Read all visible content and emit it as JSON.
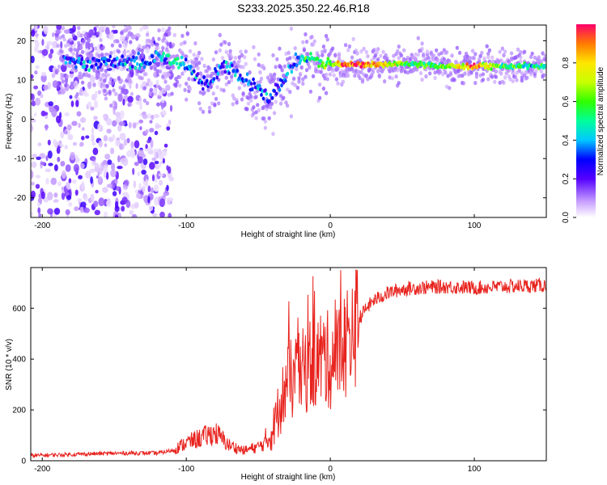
{
  "title": "S233.2025.350.22.46.R18",
  "chart_data": [
    {
      "type": "heatmap",
      "xlabel": "Height of straight line (km)",
      "ylabel": "Frequency (Hz)",
      "xlim": [
        -208,
        150
      ],
      "ylim": [
        -25,
        24
      ],
      "xticks": [
        -200,
        -100,
        0,
        100
      ],
      "yticks": [
        -20,
        -10,
        0,
        10,
        20
      ],
      "ridge": {
        "x": [
          -180,
          -170,
          -160,
          -150,
          -140,
          -130,
          -120,
          -110,
          -100,
          -95,
          -90,
          -85,
          -80,
          -75,
          -70,
          -65,
          -60,
          -55,
          -50,
          -45,
          -42,
          -40,
          -35,
          -30,
          -25,
          -20,
          -15,
          -10,
          -5,
          0,
          10,
          20,
          40,
          60,
          80,
          100,
          120,
          150
        ],
        "frequency": [
          15,
          14,
          15,
          14,
          15,
          14,
          16,
          15,
          14,
          12,
          10,
          9,
          11,
          14,
          13,
          11,
          10,
          9,
          8,
          6,
          4,
          7,
          9,
          12,
          14,
          15,
          16,
          15,
          14,
          14,
          14,
          14,
          14,
          14,
          13.5,
          13.5,
          13.5,
          13.5
        ],
        "amplitude": [
          0.3,
          0.35,
          0.3,
          0.3,
          0.35,
          0.35,
          0.4,
          0.45,
          0.4,
          0.35,
          0.3,
          0.3,
          0.3,
          0.35,
          0.4,
          0.35,
          0.3,
          0.35,
          0.3,
          0.3,
          0.25,
          0.3,
          0.3,
          0.35,
          0.35,
          0.45,
          0.5,
          0.5,
          0.6,
          0.6,
          0.95,
          0.95,
          0.75,
          0.55,
          0.6,
          0.9,
          0.55,
          0.45
        ]
      },
      "colorbar": {
        "label": "Normalized spectral amplitude",
        "ticks": [
          0.0,
          0.2,
          0.4,
          0.6,
          0.8
        ],
        "range": [
          0,
          1
        ]
      }
    },
    {
      "type": "line",
      "xlabel": "Height of straight line (km)",
      "ylabel": "SNR (10 * v/v)",
      "xlim": [
        -208,
        150
      ],
      "ylim": [
        0,
        760
      ],
      "xticks": [
        -200,
        -100,
        0,
        100
      ],
      "yticks": [
        0,
        200,
        400,
        600
      ],
      "color": "#e8231e",
      "series": [
        {
          "x": [
            -208,
            -180,
            -160,
            -140,
            -120,
            -110,
            -100,
            -90,
            -80,
            -70,
            -60,
            -50,
            -45,
            -40,
            -35,
            -30,
            -25,
            -20,
            -15,
            -10,
            -5,
            0,
            5,
            10,
            15,
            20,
            25,
            30,
            40,
            50,
            60,
            80,
            100,
            120,
            150
          ],
          "values": [
            20,
            25,
            28,
            30,
            30,
            40,
            70,
            90,
            110,
            60,
            40,
            55,
            70,
            120,
            220,
            300,
            330,
            340,
            380,
            390,
            410,
            390,
            420,
            460,
            520,
            560,
            600,
            630,
            660,
            675,
            680,
            685,
            680,
            685,
            690
          ]
        }
      ]
    }
  ]
}
